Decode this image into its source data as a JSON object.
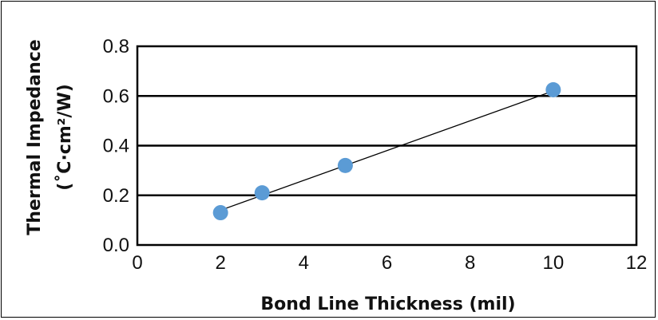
{
  "chart_data": {
    "type": "scatter",
    "xlabel": "Bond Line Thickness (mil)",
    "ylabel": "Thermal Impedance",
    "ylabel_units": "(˚C·cm²/W)",
    "xlim": [
      0,
      12
    ],
    "ylim": [
      0,
      0.8
    ],
    "x_ticks": [
      "0",
      "2",
      "4",
      "6",
      "8",
      "10",
      "12"
    ],
    "y_ticks": [
      "0.0",
      "0.2",
      "0.4",
      "0.6",
      "0.8"
    ],
    "grid": "horizontal",
    "legend": "none",
    "series": [
      {
        "points": [
          {
            "x": 2,
            "y": 0.13
          },
          {
            "x": 3,
            "y": 0.21
          },
          {
            "x": 5,
            "y": 0.32
          },
          {
            "x": 10,
            "y": 0.625
          }
        ],
        "color": "#5b9bd5"
      }
    ],
    "trendline": {
      "from": {
        "x": 2,
        "y": 0.14
      },
      "to": {
        "x": 10,
        "y": 0.62
      },
      "color": "#000000"
    }
  }
}
